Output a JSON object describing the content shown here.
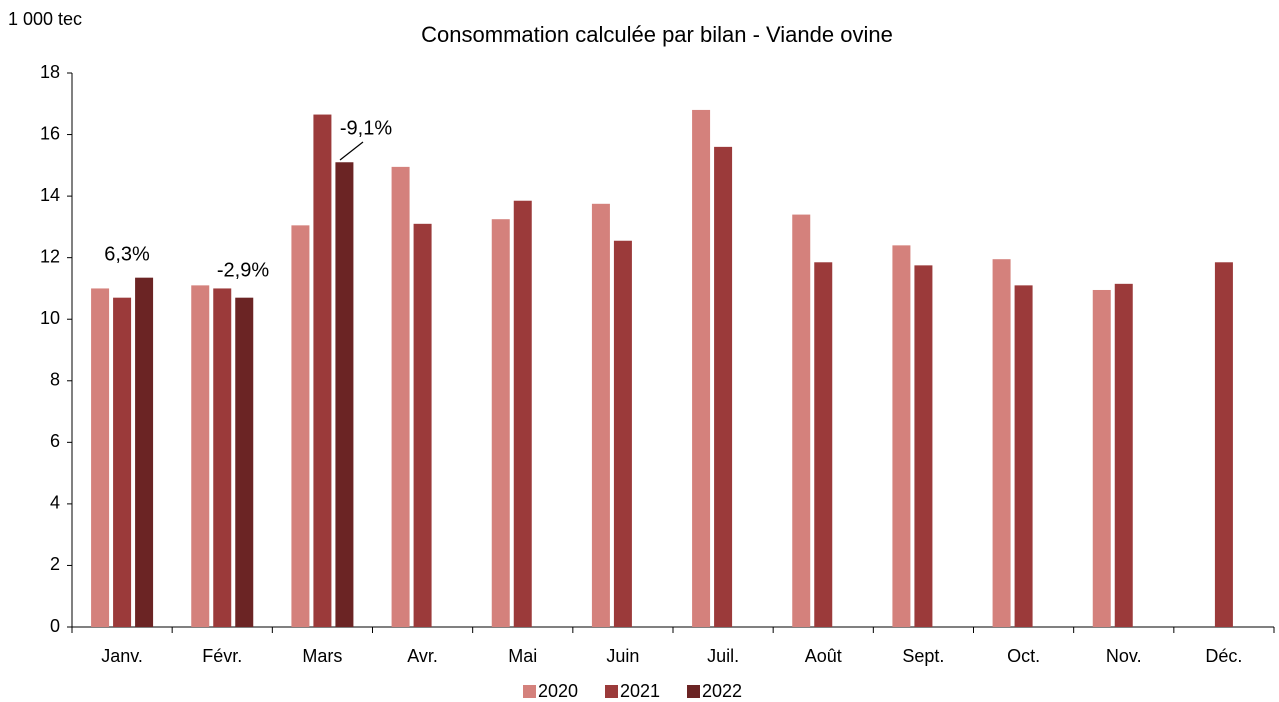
{
  "chart_data": {
    "type": "bar",
    "title": "Consommation calculée par bilan - Viande ovine",
    "y_unit_label": "1 000 tec",
    "categories": [
      "Janv.",
      "Févr.",
      "Mars",
      "Avr.",
      "Mai",
      "Juin",
      "Juil.",
      "Août",
      "Sept.",
      "Oct.",
      "Nov.",
      "Déc."
    ],
    "series": [
      {
        "name": "2020",
        "color": "#d4817c",
        "values": [
          11.0,
          11.1,
          13.05,
          14.95,
          13.25,
          13.75,
          16.8,
          13.4,
          12.4,
          11.95,
          10.95,
          null
        ]
      },
      {
        "name": "2021",
        "color": "#9b3a3a",
        "values": [
          10.7,
          11.0,
          16.65,
          13.1,
          13.85,
          12.55,
          15.6,
          11.85,
          11.75,
          11.1,
          11.15,
          11.85
        ]
      },
      {
        "name": "2022",
        "color": "#6b2424",
        "values": [
          11.35,
          10.7,
          15.1,
          null,
          null,
          null,
          null,
          null,
          null,
          null,
          null,
          null
        ]
      }
    ],
    "annotations": [
      {
        "text": "6,3%"
      },
      {
        "text": "-2,9%"
      },
      {
        "text": "-9,1%"
      }
    ],
    "ylim": [
      0,
      18
    ],
    "yticks": [
      0,
      2,
      4,
      6,
      8,
      10,
      12,
      14,
      16,
      18
    ],
    "grid": false,
    "legend": "bottom"
  }
}
